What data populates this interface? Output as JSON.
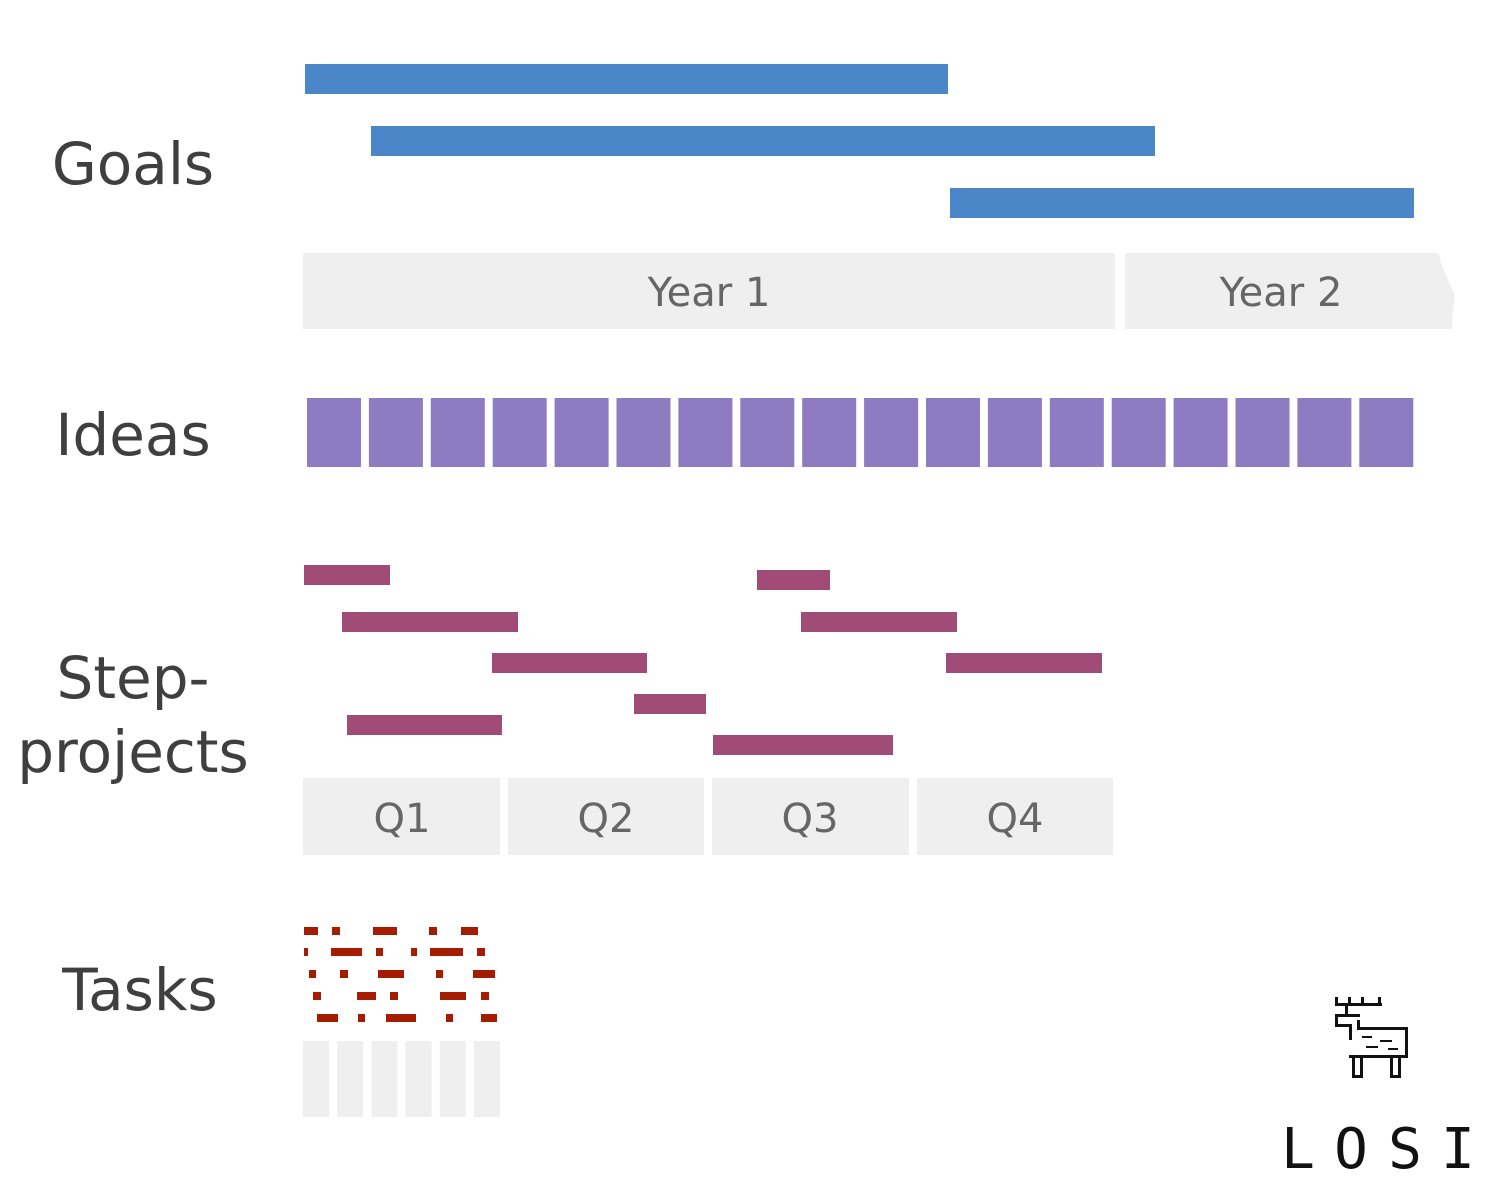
{
  "rows": {
    "goals": "Goals",
    "ideas": "Ideas",
    "step_projects": [
      "Step-",
      "projects"
    ],
    "tasks": "Tasks"
  },
  "years": [
    "Year 1",
    "Year 2"
  ],
  "quarters": [
    "Q1",
    "Q2",
    "Q3",
    "Q4"
  ],
  "logo": {
    "letters": [
      "L",
      "O",
      "S",
      "I"
    ]
  }
}
